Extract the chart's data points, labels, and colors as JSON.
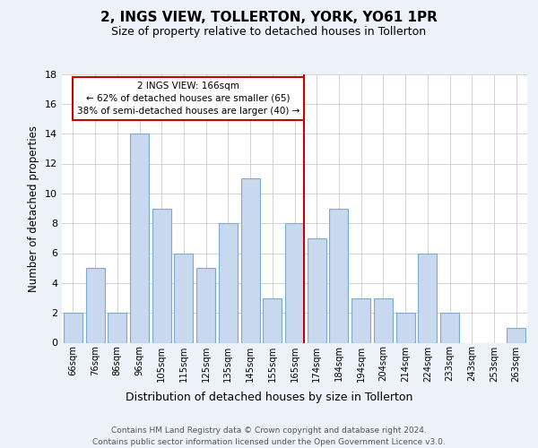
{
  "title": "2, INGS VIEW, TOLLERTON, YORK, YO61 1PR",
  "subtitle": "Size of property relative to detached houses in Tollerton",
  "xlabel": "Distribution of detached houses by size in Tollerton",
  "ylabel": "Number of detached properties",
  "bin_labels": [
    "66sqm",
    "76sqm",
    "86sqm",
    "96sqm",
    "105sqm",
    "115sqm",
    "125sqm",
    "135sqm",
    "145sqm",
    "155sqm",
    "165sqm",
    "174sqm",
    "184sqm",
    "194sqm",
    "204sqm",
    "214sqm",
    "224sqm",
    "233sqm",
    "243sqm",
    "253sqm",
    "263sqm"
  ],
  "counts": [
    2,
    5,
    2,
    14,
    9,
    6,
    5,
    8,
    11,
    3,
    8,
    7,
    9,
    3,
    3,
    2,
    6,
    2,
    0,
    0,
    1
  ],
  "bar_color": "#c8d8ee",
  "bar_edge_color": "#7aaace",
  "ref_bar_index": 10,
  "ref_line_color": "#cc0000",
  "annotation_title": "2 INGS VIEW: 166sqm",
  "annotation_line1": "← 62% of detached houses are smaller (65)",
  "annotation_line2": "38% of semi-detached houses are larger (40) →",
  "annotation_box_edge_color": "#cc0000",
  "ylim_max": 18,
  "yticks": [
    0,
    2,
    4,
    6,
    8,
    10,
    12,
    14,
    16,
    18
  ],
  "footer_line1": "Contains HM Land Registry data © Crown copyright and database right 2024.",
  "footer_line2": "Contains public sector information licensed under the Open Government Licence v3.0.",
  "bg_color": "#edf2f8",
  "plot_bg_color": "#ffffff",
  "grid_color": "#cccccc"
}
